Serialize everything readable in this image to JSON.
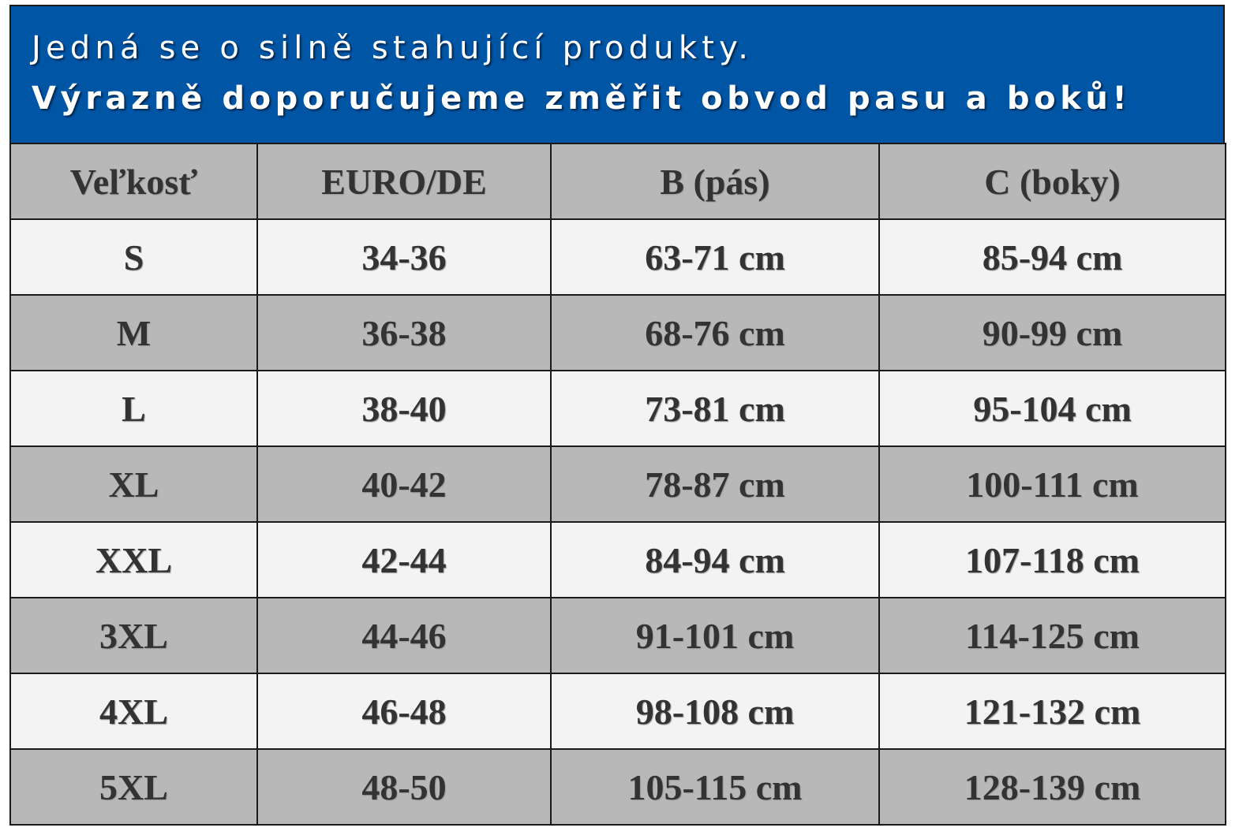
{
  "header": {
    "lines": [
      "Jedná se o silně stahující produkty.",
      "Výrazně doporučujeme změřit obvod pasu a boků!"
    ]
  },
  "table": {
    "columns": [
      "Veľkosť",
      "EURO/DE",
      "B (pás)",
      "C (boky)"
    ],
    "rows": [
      [
        "S",
        "34-36",
        "63-71 cm",
        "85-94 cm"
      ],
      [
        "M",
        "36-38",
        "68-76 cm",
        "90-99 cm"
      ],
      [
        "L",
        "38-40",
        "73-81 cm",
        "95-104 cm"
      ],
      [
        "XL",
        "40-42",
        "78-87 cm",
        "100-111 cm"
      ],
      [
        "XXL",
        "42-44",
        "84-94 cm",
        "107-118 cm"
      ],
      [
        "3XL",
        "44-46",
        "91-101 cm",
        "114-125 cm"
      ],
      [
        "4XL",
        "46-48",
        "98-108 cm",
        "121-132 cm"
      ],
      [
        "5XL",
        "48-50",
        "105-115 cm",
        "128-139 cm"
      ]
    ]
  }
}
